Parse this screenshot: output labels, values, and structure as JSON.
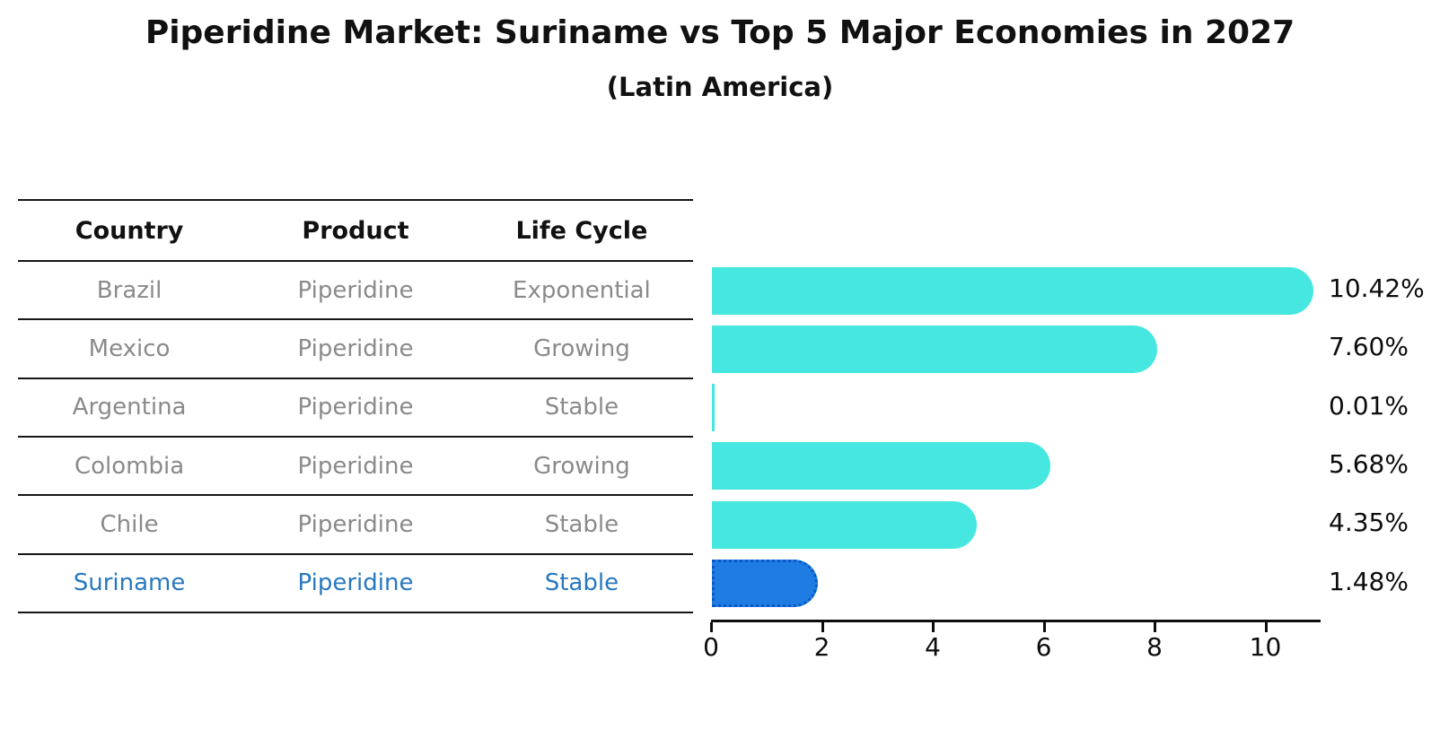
{
  "header": {
    "title": "Piperidine Market: Suriname vs Top 5 Major Economies in 2027",
    "subtitle": "(Latin America)"
  },
  "table": {
    "columns": [
      "Country",
      "Product",
      "Life Cycle"
    ],
    "rows": [
      {
        "country": "Brazil",
        "product": "Piperidine",
        "life_cycle": "Exponential",
        "highlight": false
      },
      {
        "country": "Mexico",
        "product": "Piperidine",
        "life_cycle": "Growing",
        "highlight": false
      },
      {
        "country": "Argentina",
        "product": "Piperidine",
        "life_cycle": "Stable",
        "highlight": false
      },
      {
        "country": "Colombia",
        "product": "Piperidine",
        "life_cycle": "Growing",
        "highlight": false
      },
      {
        "country": "Chile",
        "product": "Piperidine",
        "life_cycle": "Stable",
        "highlight": false
      },
      {
        "country": "Suriname",
        "product": "Piperidine",
        "life_cycle": "Stable",
        "highlight": true
      }
    ]
  },
  "chart_data": {
    "type": "bar",
    "orientation": "horizontal",
    "title": "Piperidine Market: Suriname vs Top 5 Major Economies in 2027",
    "subtitle": "(Latin America)",
    "categories": [
      "Brazil",
      "Mexico",
      "Argentina",
      "Colombia",
      "Chile",
      "Suriname"
    ],
    "values": [
      10.42,
      7.6,
      0.01,
      5.68,
      4.35,
      1.48
    ],
    "value_labels": [
      "10.42%",
      "7.60%",
      "0.01%",
      "5.68%",
      "4.35%",
      "1.48%"
    ],
    "x_ticks": [
      0,
      2,
      4,
      6,
      8,
      10
    ],
    "xlim": [
      0,
      11
    ],
    "highlight_index": 5,
    "grid": false,
    "legend": false
  },
  "colors": {
    "bar_default": "#45E7E0",
    "bar_highlight": "#1E7CE2",
    "bar_highlight_border": "#0B57C8",
    "highlight_text": "#2878BE",
    "table_text": "#8A8A8A",
    "axis_text": "#0D0D0D"
  }
}
